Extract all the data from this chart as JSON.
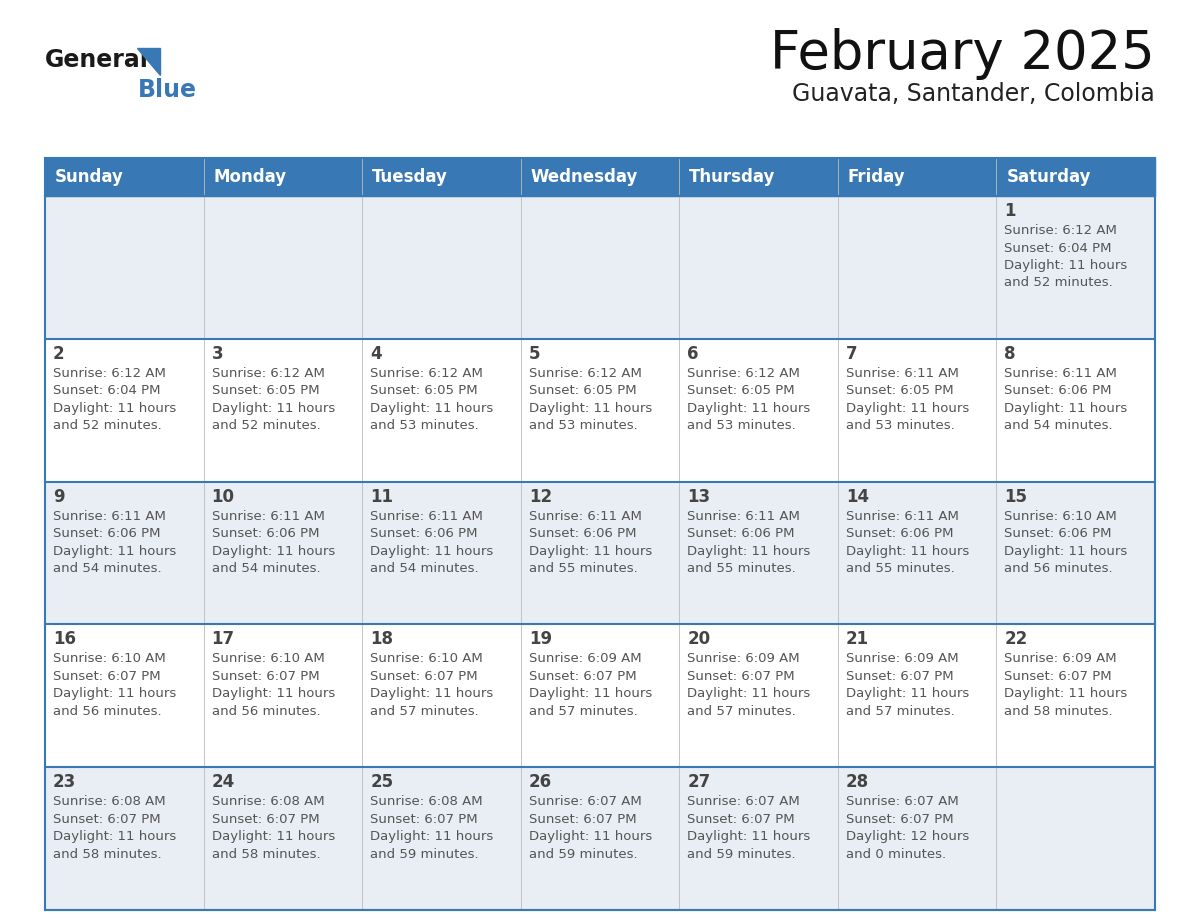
{
  "title": "February 2025",
  "subtitle": "Guavata, Santander, Colombia",
  "header_color": "#3878b4",
  "header_text_color": "#ffffff",
  "cell_bg_white": "#ffffff",
  "cell_bg_gray": "#e8eef4",
  "border_color": "#3878b4",
  "text_color": "#444444",
  "small_text_color": "#555555",
  "days_of_week": [
    "Sunday",
    "Monday",
    "Tuesday",
    "Wednesday",
    "Thursday",
    "Friday",
    "Saturday"
  ],
  "weeks": [
    [
      {
        "day": "",
        "sunrise": "",
        "sunset": "",
        "daylight": ""
      },
      {
        "day": "",
        "sunrise": "",
        "sunset": "",
        "daylight": ""
      },
      {
        "day": "",
        "sunrise": "",
        "sunset": "",
        "daylight": ""
      },
      {
        "day": "",
        "sunrise": "",
        "sunset": "",
        "daylight": ""
      },
      {
        "day": "",
        "sunrise": "",
        "sunset": "",
        "daylight": ""
      },
      {
        "day": "",
        "sunrise": "",
        "sunset": "",
        "daylight": ""
      },
      {
        "day": "1",
        "sunrise": "6:12 AM",
        "sunset": "6:04 PM",
        "daylight": "11 hours\nand 52 minutes."
      }
    ],
    [
      {
        "day": "2",
        "sunrise": "6:12 AM",
        "sunset": "6:04 PM",
        "daylight": "11 hours\nand 52 minutes."
      },
      {
        "day": "3",
        "sunrise": "6:12 AM",
        "sunset": "6:05 PM",
        "daylight": "11 hours\nand 52 minutes."
      },
      {
        "day": "4",
        "sunrise": "6:12 AM",
        "sunset": "6:05 PM",
        "daylight": "11 hours\nand 53 minutes."
      },
      {
        "day": "5",
        "sunrise": "6:12 AM",
        "sunset": "6:05 PM",
        "daylight": "11 hours\nand 53 minutes."
      },
      {
        "day": "6",
        "sunrise": "6:12 AM",
        "sunset": "6:05 PM",
        "daylight": "11 hours\nand 53 minutes."
      },
      {
        "day": "7",
        "sunrise": "6:11 AM",
        "sunset": "6:05 PM",
        "daylight": "11 hours\nand 53 minutes."
      },
      {
        "day": "8",
        "sunrise": "6:11 AM",
        "sunset": "6:06 PM",
        "daylight": "11 hours\nand 54 minutes."
      }
    ],
    [
      {
        "day": "9",
        "sunrise": "6:11 AM",
        "sunset": "6:06 PM",
        "daylight": "11 hours\nand 54 minutes."
      },
      {
        "day": "10",
        "sunrise": "6:11 AM",
        "sunset": "6:06 PM",
        "daylight": "11 hours\nand 54 minutes."
      },
      {
        "day": "11",
        "sunrise": "6:11 AM",
        "sunset": "6:06 PM",
        "daylight": "11 hours\nand 54 minutes."
      },
      {
        "day": "12",
        "sunrise": "6:11 AM",
        "sunset": "6:06 PM",
        "daylight": "11 hours\nand 55 minutes."
      },
      {
        "day": "13",
        "sunrise": "6:11 AM",
        "sunset": "6:06 PM",
        "daylight": "11 hours\nand 55 minutes."
      },
      {
        "day": "14",
        "sunrise": "6:11 AM",
        "sunset": "6:06 PM",
        "daylight": "11 hours\nand 55 minutes."
      },
      {
        "day": "15",
        "sunrise": "6:10 AM",
        "sunset": "6:06 PM",
        "daylight": "11 hours\nand 56 minutes."
      }
    ],
    [
      {
        "day": "16",
        "sunrise": "6:10 AM",
        "sunset": "6:07 PM",
        "daylight": "11 hours\nand 56 minutes."
      },
      {
        "day": "17",
        "sunrise": "6:10 AM",
        "sunset": "6:07 PM",
        "daylight": "11 hours\nand 56 minutes."
      },
      {
        "day": "18",
        "sunrise": "6:10 AM",
        "sunset": "6:07 PM",
        "daylight": "11 hours\nand 57 minutes."
      },
      {
        "day": "19",
        "sunrise": "6:09 AM",
        "sunset": "6:07 PM",
        "daylight": "11 hours\nand 57 minutes."
      },
      {
        "day": "20",
        "sunrise": "6:09 AM",
        "sunset": "6:07 PM",
        "daylight": "11 hours\nand 57 minutes."
      },
      {
        "day": "21",
        "sunrise": "6:09 AM",
        "sunset": "6:07 PM",
        "daylight": "11 hours\nand 57 minutes."
      },
      {
        "day": "22",
        "sunrise": "6:09 AM",
        "sunset": "6:07 PM",
        "daylight": "11 hours\nand 58 minutes."
      }
    ],
    [
      {
        "day": "23",
        "sunrise": "6:08 AM",
        "sunset": "6:07 PM",
        "daylight": "11 hours\nand 58 minutes."
      },
      {
        "day": "24",
        "sunrise": "6:08 AM",
        "sunset": "6:07 PM",
        "daylight": "11 hours\nand 58 minutes."
      },
      {
        "day": "25",
        "sunrise": "6:08 AM",
        "sunset": "6:07 PM",
        "daylight": "11 hours\nand 59 minutes."
      },
      {
        "day": "26",
        "sunrise": "6:07 AM",
        "sunset": "6:07 PM",
        "daylight": "11 hours\nand 59 minutes."
      },
      {
        "day": "27",
        "sunrise": "6:07 AM",
        "sunset": "6:07 PM",
        "daylight": "11 hours\nand 59 minutes."
      },
      {
        "day": "28",
        "sunrise": "6:07 AM",
        "sunset": "6:07 PM",
        "daylight": "12 hours\nand 0 minutes."
      },
      {
        "day": "",
        "sunrise": "",
        "sunset": "",
        "daylight": ""
      }
    ]
  ],
  "logo_general_color": "#1a1a1a",
  "logo_blue_color": "#3878b4",
  "logo_triangle_color": "#3878b4"
}
